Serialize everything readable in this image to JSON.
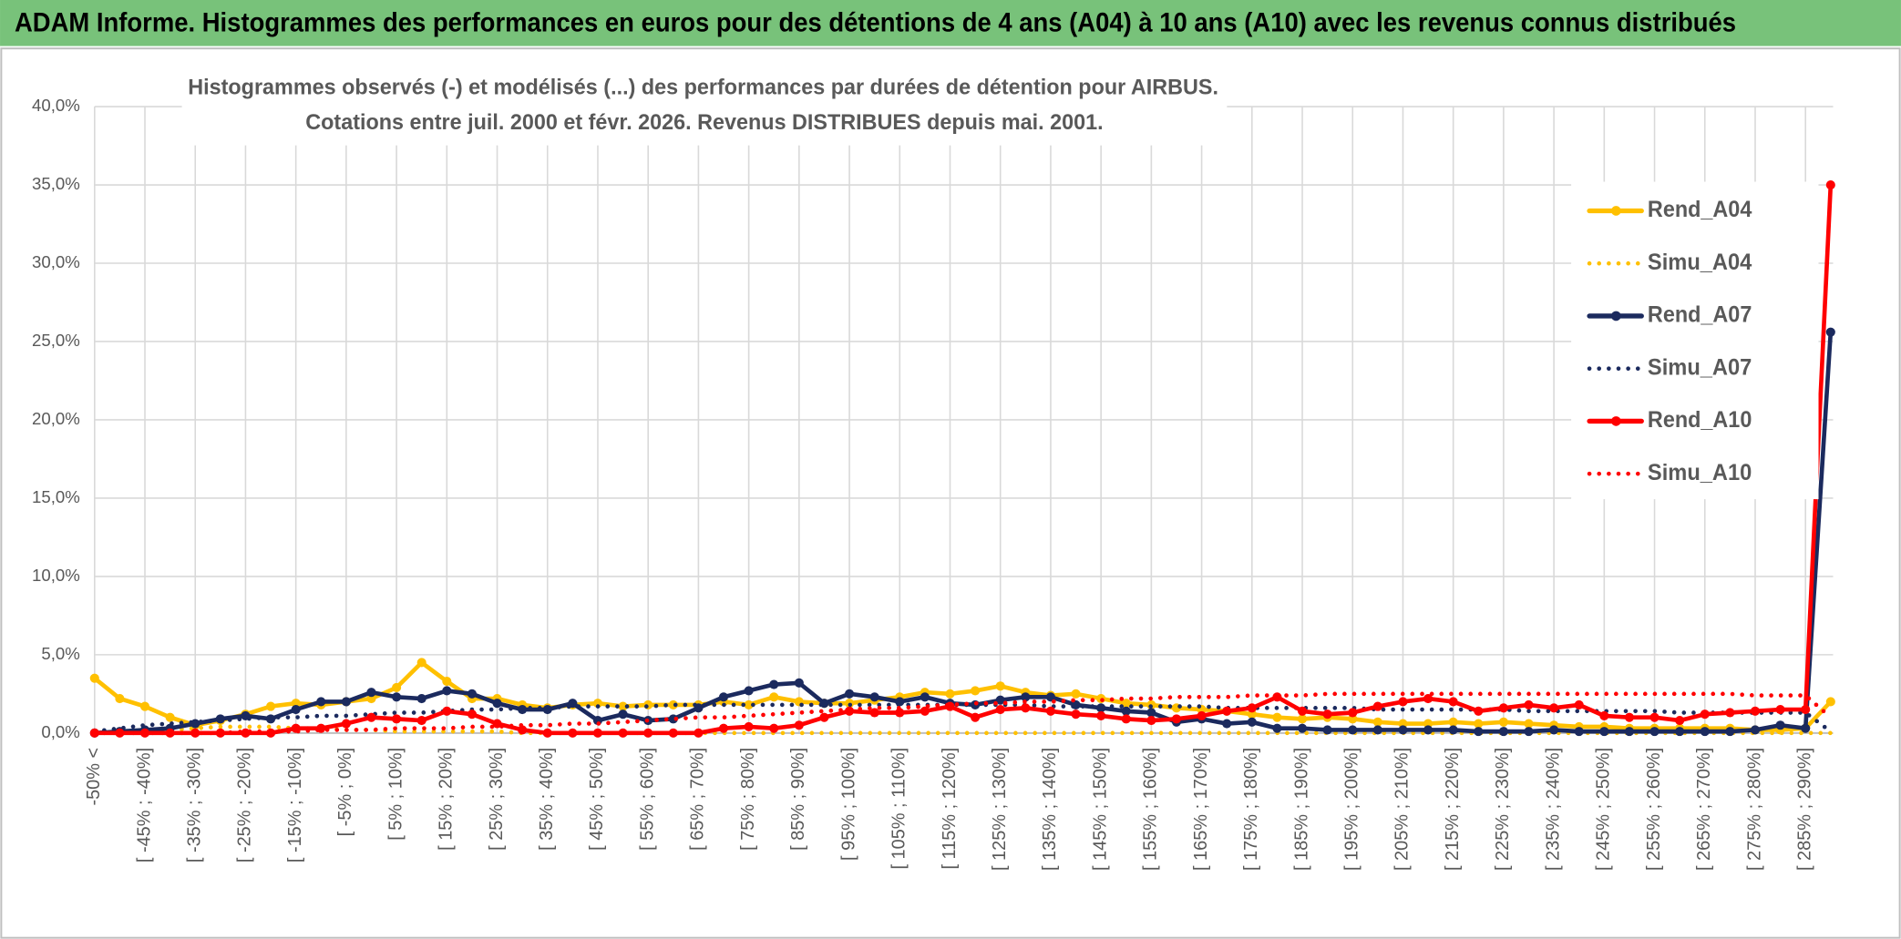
{
  "page_title": "ADAM Informe. Histogrammes des performances en euros pour des détentions de 4 ans (A04) à 10 ans (A10) avec les revenus connus distribués",
  "chart_data": {
    "type": "line",
    "title": [
      "Histogrammes observés (-) et modélisés (...) des performances par durées de détention pour AIRBUS.",
      "Cotations entre juil. 2000 et févr. 2026. Revenus DISTRIBUES depuis mai. 2001."
    ],
    "categories": [
      "-50% <",
      null,
      "[ -45% ; -40%]",
      null,
      "[ -35% ; -30%]",
      null,
      "[ -25% ; -20%]",
      null,
      "[ -15% ; -10%]",
      null,
      "[ -5% ; 0%]",
      null,
      "[ 5% ; 10%]",
      null,
      "[ 15% ; 20%]",
      null,
      "[ 25% ; 30%]",
      null,
      "[ 35% ; 40%]",
      null,
      "[ 45% ; 50%]",
      null,
      "[ 55% ; 60%]",
      null,
      "[ 65% ; 70%]",
      null,
      "[ 75% ; 80%]",
      null,
      "[ 85% ; 90%]",
      null,
      "[ 95% ; 100%]",
      null,
      "[ 105% ; 110%]",
      null,
      "[ 115% ; 120%]",
      null,
      "[ 125% ; 130%]",
      null,
      "[ 135% ; 140%]",
      null,
      "[ 145% ; 150%]",
      null,
      "[ 155% ; 160%]",
      null,
      "[ 165% ; 170%]",
      null,
      "[ 175% ; 180%]",
      null,
      "[ 185% ; 190%]",
      null,
      "[ 195% ; 200%]",
      null,
      "[ 205% ; 210%]",
      null,
      "[ 215% ; 220%]",
      null,
      "[ 225% ; 230%]",
      null,
      "[ 235% ; 240%]",
      null,
      "[ 245% ; 250%]",
      null,
      "[ 255% ; 260%]",
      null,
      "[ 265% ; 270%]",
      null,
      "[ 275% ; 280%]",
      null,
      "[ 285% ; 290%]",
      null
    ],
    "series": [
      {
        "name": "Rend_A04",
        "color": "#ffc000",
        "style": "solid",
        "markers": true,
        "values": [
          3.5,
          2.2,
          1.7,
          1.0,
          0.5,
          0.8,
          1.2,
          1.7,
          1.9,
          1.8,
          2.0,
          2.2,
          2.9,
          4.5,
          3.3,
          2.2,
          2.2,
          1.8,
          1.6,
          1.8,
          1.9,
          1.7,
          1.8,
          1.8,
          1.8,
          2.0,
          1.8,
          2.3,
          2.0,
          1.9,
          1.9,
          2.1,
          2.3,
          2.6,
          2.5,
          2.7,
          3.0,
          2.6,
          2.4,
          2.5,
          2.2,
          1.9,
          1.8,
          1.6,
          1.5,
          1.4,
          1.2,
          1.0,
          0.9,
          1.0,
          0.9,
          0.7,
          0.6,
          0.6,
          0.7,
          0.6,
          0.7,
          0.6,
          0.5,
          0.4,
          0.4,
          0.3,
          0.3,
          0.3,
          0.3,
          0.3,
          0.2,
          0.2,
          0.3,
          2.0
        ]
      },
      {
        "name": "Simu_A04",
        "color": "#ffc000",
        "style": "dotted",
        "markers": false,
        "values": [
          0,
          0.1,
          0.1,
          0.2,
          0.3,
          0.4,
          0.4,
          0.4,
          0.3,
          0.3,
          0.2,
          0.2,
          0.1,
          0.1,
          0.1,
          0.1,
          0.1,
          0,
          0,
          0,
          0,
          0,
          0,
          0,
          0,
          0,
          0,
          0,
          0,
          0,
          0,
          0,
          0,
          0,
          0,
          0,
          0,
          0,
          0,
          0,
          0,
          0,
          0,
          0,
          0,
          0,
          0,
          0,
          0,
          0,
          0,
          0,
          0,
          0,
          0,
          0,
          0,
          0,
          0,
          0,
          0,
          0,
          0,
          0,
          0,
          0,
          0,
          0,
          0,
          0
        ]
      },
      {
        "name": "Rend_A07",
        "color": "#1b2a5e",
        "style": "solid",
        "markers": true,
        "values": [
          0,
          0.1,
          0.2,
          0.3,
          0.6,
          0.9,
          1.1,
          0.9,
          1.5,
          2.0,
          2.0,
          2.6,
          2.3,
          2.2,
          2.7,
          2.5,
          1.9,
          1.5,
          1.5,
          1.9,
          0.8,
          1.2,
          0.8,
          0.9,
          1.6,
          2.3,
          2.7,
          3.1,
          3.2,
          1.9,
          2.5,
          2.3,
          2.0,
          2.3,
          1.9,
          1.8,
          2.1,
          2.3,
          2.3,
          1.8,
          1.6,
          1.4,
          1.3,
          0.7,
          0.9,
          0.6,
          0.7,
          0.3,
          0.3,
          0.2,
          0.2,
          0.2,
          0.2,
          0.2,
          0.2,
          0.1,
          0.1,
          0.1,
          0.2,
          0.1,
          0.1,
          0.1,
          0.1,
          0.1,
          0.1,
          0.1,
          0.2,
          0.5,
          0.3,
          25.6
        ]
      },
      {
        "name": "Simu_A07",
        "color": "#1b2a5e",
        "style": "dotted",
        "markers": false,
        "values": [
          0.1,
          0.3,
          0.5,
          0.6,
          0.7,
          0.8,
          0.9,
          1.0,
          1.0,
          1.1,
          1.1,
          1.2,
          1.3,
          1.3,
          1.4,
          1.5,
          1.5,
          1.6,
          1.6,
          1.7,
          1.7,
          1.7,
          1.7,
          1.8,
          1.8,
          1.8,
          1.8,
          1.8,
          1.8,
          1.8,
          1.8,
          1.8,
          1.8,
          1.8,
          1.8,
          1.8,
          1.8,
          1.8,
          1.7,
          1.7,
          1.7,
          1.7,
          1.7,
          1.7,
          1.7,
          1.6,
          1.6,
          1.6,
          1.6,
          1.6,
          1.6,
          1.5,
          1.5,
          1.5,
          1.5,
          1.5,
          1.5,
          1.4,
          1.4,
          1.4,
          1.4,
          1.4,
          1.4,
          1.3,
          1.3,
          1.3,
          1.3,
          1.3,
          1.3,
          0.1
        ]
      },
      {
        "name": "Rend_A10",
        "color": "#ff0000",
        "style": "solid",
        "markers": true,
        "values": [
          0,
          0,
          0,
          0,
          0,
          0,
          0,
          0,
          0.3,
          0.3,
          0.6,
          1.0,
          0.9,
          0.8,
          1.4,
          1.2,
          0.6,
          0.2,
          0,
          0,
          0,
          0,
          0,
          0,
          0,
          0.3,
          0.4,
          0.3,
          0.5,
          1.0,
          1.4,
          1.3,
          1.3,
          1.4,
          1.7,
          1.0,
          1.5,
          1.6,
          1.4,
          1.2,
          1.1,
          0.9,
          0.8,
          0.9,
          1.1,
          1.4,
          1.6,
          2.3,
          1.4,
          1.2,
          1.3,
          1.7,
          2.0,
          2.2,
          2.0,
          1.4,
          1.6,
          1.8,
          1.6,
          1.8,
          1.1,
          1.0,
          1.0,
          0.8,
          1.2,
          1.3,
          1.4,
          1.5,
          1.5,
          35.0
        ]
      },
      {
        "name": "Simu_A10",
        "color": "#ff0000",
        "style": "dotted",
        "markers": false,
        "values": [
          0,
          0,
          0,
          0,
          0,
          0,
          0.1,
          0.1,
          0.1,
          0.2,
          0.2,
          0.2,
          0.3,
          0.3,
          0.3,
          0.4,
          0.4,
          0.5,
          0.5,
          0.6,
          0.6,
          0.7,
          0.8,
          0.9,
          1.0,
          1.0,
          1.1,
          1.2,
          1.3,
          1.4,
          1.5,
          1.6,
          1.6,
          1.7,
          1.8,
          1.9,
          1.9,
          2.0,
          2.0,
          2.1,
          2.1,
          2.2,
          2.2,
          2.3,
          2.3,
          2.3,
          2.4,
          2.4,
          2.4,
          2.5,
          2.5,
          2.5,
          2.5,
          2.5,
          2.5,
          2.5,
          2.5,
          2.5,
          2.5,
          2.5,
          2.5,
          2.5,
          2.5,
          2.5,
          2.5,
          2.5,
          2.4,
          2.4,
          2.4,
          1.0
        ]
      }
    ],
    "ylim": [
      0,
      40
    ],
    "yticks": [
      {
        "value": 0,
        "label": "0,0%"
      },
      {
        "value": 5,
        "label": "5,0%"
      },
      {
        "value": 10,
        "label": "10,0%"
      },
      {
        "value": 15,
        "label": "15,0%"
      },
      {
        "value": 20,
        "label": "20,0%"
      },
      {
        "value": 25,
        "label": "25,0%"
      },
      {
        "value": 30,
        "label": "30,0%"
      },
      {
        "value": 35,
        "label": "35,0%"
      },
      {
        "value": 40,
        "label": "40,0%"
      }
    ],
    "grid": true
  }
}
